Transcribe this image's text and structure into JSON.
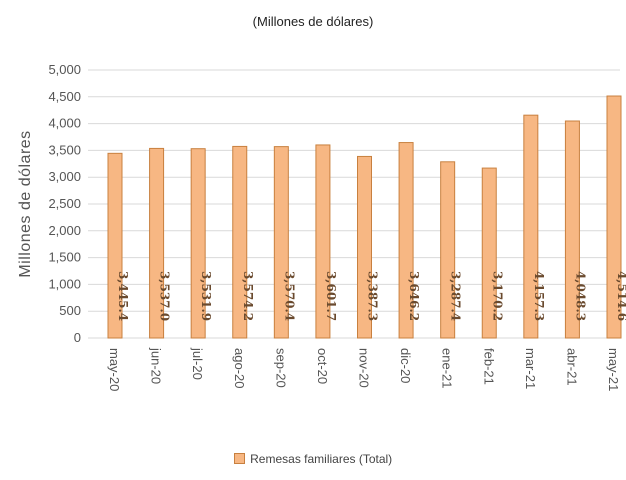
{
  "chart_data": {
    "type": "bar",
    "subtitle": "(Millones de dólares)",
    "ylabel": "Millones de dólares",
    "xlabel": "",
    "categories": [
      "may-20",
      "jun-20",
      "jul-20",
      "ago-20",
      "sep-20",
      "oct-20",
      "nov-20",
      "dic-20",
      "ene-21",
      "feb-21",
      "mar-21",
      "abr-21",
      "may-21"
    ],
    "series": [
      {
        "name": "Remesas familiares (Total)",
        "values": [
          3445.4,
          3537.0,
          3531.9,
          3574.2,
          3570.4,
          3601.7,
          3387.3,
          3646.2,
          3287.4,
          3170.2,
          4157.3,
          4048.3,
          4514.6
        ],
        "labels": [
          "3,445.4",
          "3,537.0",
          "3,531.9",
          "3,574.2",
          "3,570.4",
          "3,601.7",
          "3,387.3",
          "3,646.2",
          "3,287.4",
          "3,170.2",
          "4,157.3",
          "4,048.3",
          "4,514.6"
        ]
      }
    ],
    "ylim": [
      0,
      5000
    ],
    "yticks": [
      0,
      500,
      1000,
      1500,
      2000,
      2500,
      3000,
      3500,
      4000,
      4500,
      5000
    ],
    "ytick_labels": [
      "0",
      "500",
      "1,000",
      "1,500",
      "2,000",
      "2,500",
      "3,000",
      "3,500",
      "4,000",
      "4,500",
      "5,000"
    ],
    "grid": true,
    "legend_position": "bottom",
    "colors": {
      "bar_fill": "#f7b783",
      "bar_stroke": "#c8803f",
      "grid": "#d9d9d9",
      "label": "#6a4a2e"
    }
  }
}
